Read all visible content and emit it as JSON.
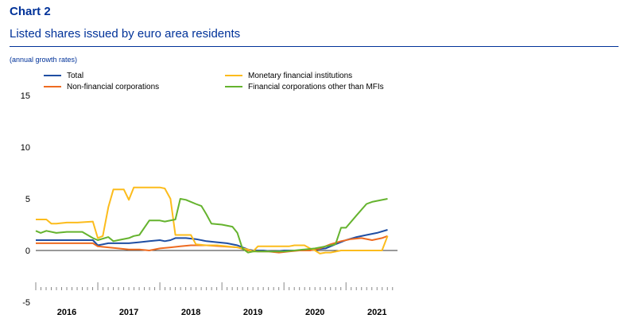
{
  "header": {
    "chart_label": "Chart 2",
    "title": "Listed shares issued by euro area residents",
    "unit_note": "(annual growth rates)"
  },
  "chart_data": {
    "type": "line",
    "ylim": [
      -5,
      15
    ],
    "yticks": [
      -5,
      0,
      5,
      10,
      15
    ],
    "xlim": [
      2015.5,
      2021.33
    ],
    "year_labels": [
      {
        "label": "2016",
        "x": 2016.0
      },
      {
        "label": "2017",
        "x": 2017.0
      },
      {
        "label": "2018",
        "x": 2018.0
      },
      {
        "label": "2019",
        "x": 2019.0
      },
      {
        "label": "2020",
        "x": 2020.0
      },
      {
        "label": "2021",
        "x": 2021.0
      }
    ],
    "legend": "top",
    "grid": false,
    "series": [
      {
        "name": "Total",
        "color": "#1f4ea3",
        "points": [
          [
            2015.5,
            1.0
          ],
          [
            2015.75,
            1.0
          ],
          [
            2016.0,
            1.0
          ],
          [
            2016.25,
            1.0
          ],
          [
            2016.42,
            1.0
          ],
          [
            2016.5,
            0.5
          ],
          [
            2016.67,
            0.7
          ],
          [
            2016.83,
            0.7
          ],
          [
            2017.0,
            0.7
          ],
          [
            2017.17,
            0.8
          ],
          [
            2017.33,
            0.9
          ],
          [
            2017.5,
            1.0
          ],
          [
            2017.58,
            0.9
          ],
          [
            2017.67,
            1.0
          ],
          [
            2017.75,
            1.2
          ],
          [
            2017.92,
            1.2
          ],
          [
            2018.08,
            1.1
          ],
          [
            2018.25,
            0.9
          ],
          [
            2018.42,
            0.8
          ],
          [
            2018.58,
            0.7
          ],
          [
            2018.75,
            0.5
          ],
          [
            2018.92,
            0.1
          ],
          [
            2019.0,
            0.0
          ],
          [
            2019.17,
            0.0
          ],
          [
            2019.33,
            -0.1
          ],
          [
            2019.5,
            0.0
          ],
          [
            2019.67,
            0.0
          ],
          [
            2019.83,
            0.0
          ],
          [
            2020.0,
            0.1
          ],
          [
            2020.17,
            0.2
          ],
          [
            2020.33,
            0.6
          ],
          [
            2020.5,
            1.0
          ],
          [
            2020.67,
            1.3
          ],
          [
            2020.83,
            1.5
          ],
          [
            2021.0,
            1.7
          ],
          [
            2021.17,
            2.0
          ]
        ]
      },
      {
        "name": "Non-financial corporations",
        "color": "#ee6b21",
        "points": [
          [
            2015.5,
            0.7
          ],
          [
            2015.75,
            0.7
          ],
          [
            2016.0,
            0.7
          ],
          [
            2016.25,
            0.7
          ],
          [
            2016.42,
            0.7
          ],
          [
            2016.5,
            0.4
          ],
          [
            2016.67,
            0.3
          ],
          [
            2016.83,
            0.2
          ],
          [
            2017.0,
            0.1
          ],
          [
            2017.17,
            0.1
          ],
          [
            2017.33,
            0.0
          ],
          [
            2017.5,
            0.2
          ],
          [
            2017.67,
            0.3
          ],
          [
            2017.83,
            0.4
          ],
          [
            2018.0,
            0.5
          ],
          [
            2018.25,
            0.5
          ],
          [
            2018.5,
            0.4
          ],
          [
            2018.75,
            0.3
          ],
          [
            2018.92,
            0.0
          ],
          [
            2019.08,
            -0.1
          ],
          [
            2019.25,
            -0.1
          ],
          [
            2019.42,
            -0.2
          ],
          [
            2019.58,
            -0.1
          ],
          [
            2019.75,
            0.0
          ],
          [
            2019.92,
            0.0
          ],
          [
            2020.08,
            0.2
          ],
          [
            2020.25,
            0.6
          ],
          [
            2020.42,
            0.9
          ],
          [
            2020.58,
            1.1
          ],
          [
            2020.75,
            1.2
          ],
          [
            2020.92,
            1.0
          ],
          [
            2021.08,
            1.2
          ],
          [
            2021.17,
            1.4
          ]
        ]
      },
      {
        "name": "Monetary financial institutions",
        "color": "#fcbc1c",
        "points": [
          [
            2015.5,
            3.0
          ],
          [
            2015.67,
            3.0
          ],
          [
            2015.75,
            2.6
          ],
          [
            2015.83,
            2.6
          ],
          [
            2016.0,
            2.7
          ],
          [
            2016.17,
            2.7
          ],
          [
            2016.42,
            2.8
          ],
          [
            2016.5,
            1.2
          ],
          [
            2016.58,
            1.4
          ],
          [
            2016.67,
            4.2
          ],
          [
            2016.75,
            5.9
          ],
          [
            2016.92,
            5.9
          ],
          [
            2017.0,
            4.9
          ],
          [
            2017.08,
            6.1
          ],
          [
            2017.25,
            6.1
          ],
          [
            2017.42,
            6.1
          ],
          [
            2017.5,
            6.1
          ],
          [
            2017.58,
            6.0
          ],
          [
            2017.67,
            5.0
          ],
          [
            2017.75,
            1.5
          ],
          [
            2017.92,
            1.5
          ],
          [
            2018.0,
            1.5
          ],
          [
            2018.08,
            0.6
          ],
          [
            2018.25,
            0.5
          ],
          [
            2018.42,
            0.5
          ],
          [
            2018.58,
            0.4
          ],
          [
            2018.75,
            0.3
          ],
          [
            2018.83,
            0.2
          ],
          [
            2018.92,
            0.1
          ],
          [
            2019.0,
            -0.1
          ],
          [
            2019.08,
            0.4
          ],
          [
            2019.25,
            0.4
          ],
          [
            2019.42,
            0.4
          ],
          [
            2019.58,
            0.4
          ],
          [
            2019.67,
            0.5
          ],
          [
            2019.75,
            0.5
          ],
          [
            2019.83,
            0.5
          ],
          [
            2019.92,
            0.2
          ],
          [
            2020.0,
            0.0
          ],
          [
            2020.08,
            -0.3
          ],
          [
            2020.17,
            -0.2
          ],
          [
            2020.25,
            -0.2
          ],
          [
            2020.42,
            0.0
          ],
          [
            2020.58,
            0.0
          ],
          [
            2020.75,
            0.0
          ],
          [
            2020.92,
            0.0
          ],
          [
            2021.08,
            0.0
          ],
          [
            2021.17,
            1.4
          ]
        ]
      },
      {
        "name": "Financial corporations other than MFIs",
        "color": "#65b32e",
        "points": [
          [
            2015.5,
            1.9
          ],
          [
            2015.58,
            1.7
          ],
          [
            2015.67,
            1.9
          ],
          [
            2015.83,
            1.7
          ],
          [
            2016.0,
            1.8
          ],
          [
            2016.17,
            1.8
          ],
          [
            2016.25,
            1.8
          ],
          [
            2016.42,
            1.2
          ],
          [
            2016.5,
            1.0
          ],
          [
            2016.67,
            1.3
          ],
          [
            2016.75,
            0.9
          ],
          [
            2016.83,
            1.0
          ],
          [
            2017.0,
            1.2
          ],
          [
            2017.08,
            1.4
          ],
          [
            2017.17,
            1.5
          ],
          [
            2017.33,
            2.9
          ],
          [
            2017.5,
            2.9
          ],
          [
            2017.58,
            2.8
          ],
          [
            2017.75,
            3.0
          ],
          [
            2017.83,
            5.0
          ],
          [
            2017.92,
            4.9
          ],
          [
            2018.08,
            4.5
          ],
          [
            2018.17,
            4.3
          ],
          [
            2018.25,
            3.5
          ],
          [
            2018.33,
            2.6
          ],
          [
            2018.5,
            2.5
          ],
          [
            2018.67,
            2.3
          ],
          [
            2018.75,
            1.7
          ],
          [
            2018.83,
            0.2
          ],
          [
            2018.92,
            -0.2
          ],
          [
            2019.0,
            -0.1
          ],
          [
            2019.17,
            -0.1
          ],
          [
            2019.33,
            -0.1
          ],
          [
            2019.5,
            -0.1
          ],
          [
            2019.67,
            0.0
          ],
          [
            2019.83,
            0.1
          ],
          [
            2020.0,
            0.2
          ],
          [
            2020.17,
            0.4
          ],
          [
            2020.33,
            0.6
          ],
          [
            2020.42,
            2.2
          ],
          [
            2020.5,
            2.2
          ],
          [
            2020.67,
            3.4
          ],
          [
            2020.83,
            4.5
          ],
          [
            2020.92,
            4.7
          ],
          [
            2021.0,
            4.8
          ],
          [
            2021.17,
            5.0
          ]
        ]
      }
    ]
  }
}
